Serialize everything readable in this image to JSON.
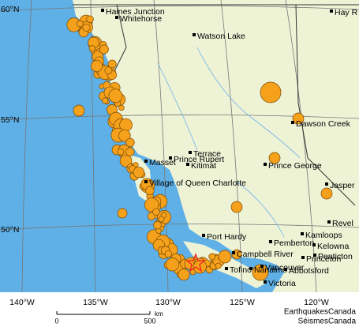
{
  "map": {
    "lat_labels": [
      "60°N",
      "55°N",
      "50°N"
    ],
    "lon_labels": [
      "140°W",
      "135°W",
      "130°W",
      "125°W",
      "120°W"
    ],
    "cities": [
      "Haines Junction",
      "Whitehorse",
      "Watson Lake",
      "Hay R",
      "Terrace",
      "Prince Rupert",
      "Kitimat",
      "Masset",
      "Village of Queen Charlotte",
      "Prince George",
      "Dawson Creek",
      "Jasper",
      "Revel",
      "Kamloops",
      "Pemberton",
      "Kelowna",
      "Penticton",
      "Princeton",
      "Port Hardy",
      "Campbell River",
      "Tofino",
      "Nanaimo",
      "Vancouver",
      "Abbotsford",
      "Victoria"
    ],
    "scale": {
      "start": "0",
      "end": "500",
      "unit": "km"
    },
    "credit": [
      "EarthquakesCanada",
      "SéismesCanada"
    ]
  }
}
